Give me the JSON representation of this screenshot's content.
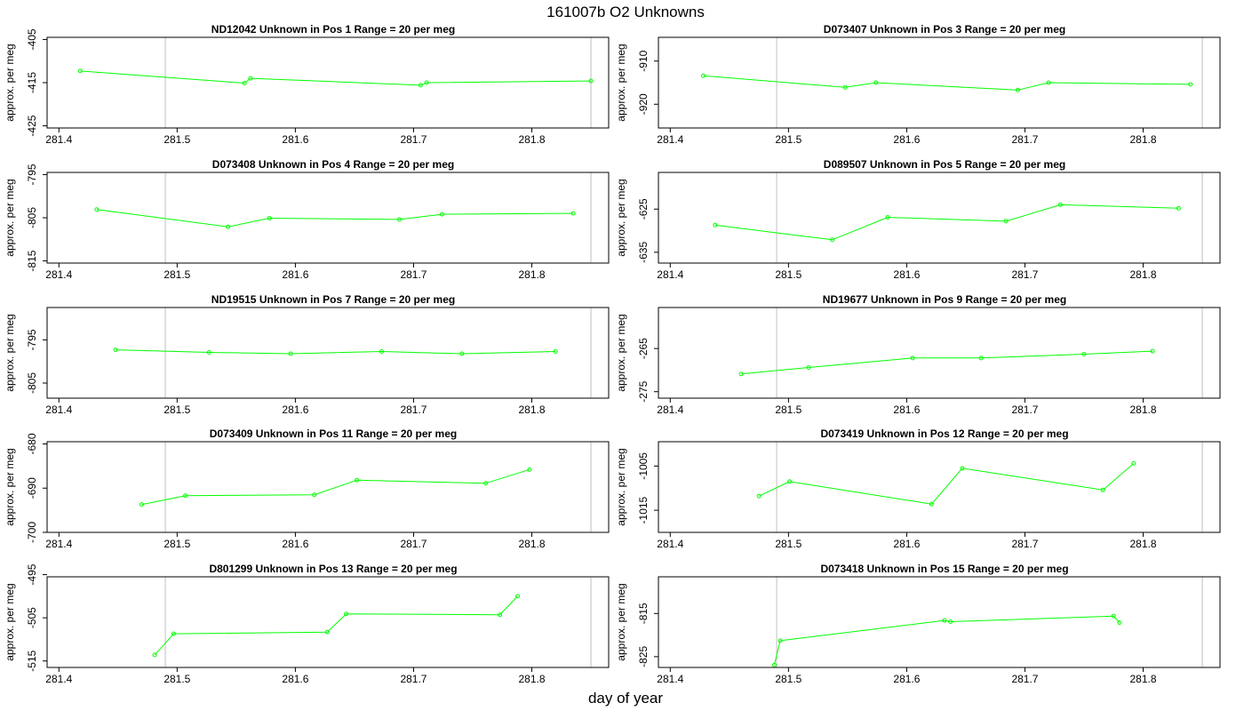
{
  "figure": {
    "title": "161007b  O2 Unknowns",
    "xlabel": "day of year"
  },
  "colors": {
    "line": "#00ff00",
    "frame": "#000000",
    "vline": "#bebebe"
  },
  "chart_data": [
    {
      "type": "line",
      "title": "ND12042    Unknown in Pos 1          Range = 20 per meg",
      "xlabel": "",
      "ylabel": "approx. per meg",
      "xlim": [
        281.39,
        281.865
      ],
      "ylim": [
        -425.5,
        -404.5
      ],
      "x_ticks": [
        281.4,
        281.5,
        281.6,
        281.7,
        281.8
      ],
      "x_tick_labels": [
        "281.4",
        "281.5",
        "281.6",
        "281.7",
        "281.8"
      ],
      "y_ticks": [
        -405,
        -415,
        -425
      ],
      "y_tick_labels": [
        "-405",
        "-415",
        "-425"
      ],
      "vlines": [
        281.49,
        281.85
      ],
      "x": [
        281.418,
        281.557,
        281.562,
        281.706,
        281.711,
        281.85
      ],
      "values": [
        -412.3,
        -415.1,
        -414.0,
        -415.6,
        -415.0,
        -414.6
      ]
    },
    {
      "type": "line",
      "title": "D073407    Unknown in Pos 3          Range = 20 per meg",
      "xlabel": "",
      "ylabel": "approx. per meg",
      "xlim": [
        281.39,
        281.865
      ],
      "ylim": [
        -925.5,
        -904.5
      ],
      "x_ticks": [
        281.4,
        281.5,
        281.6,
        281.7,
        281.8
      ],
      "x_tick_labels": [
        "281.4",
        "281.5",
        "281.6",
        "281.7",
        "281.8"
      ],
      "y_ticks": [
        -910,
        -920
      ],
      "y_tick_labels": [
        "-910",
        "-920"
      ],
      "vlines": [
        281.49,
        281.85
      ],
      "x": [
        281.428,
        281.548,
        281.574,
        281.694,
        281.72,
        281.84
      ],
      "values": [
        -913.4,
        -916.1,
        -915.0,
        -916.7,
        -915.0,
        -915.4
      ]
    },
    {
      "type": "line",
      "title": "D073408    Unknown in Pos 4          Range = 20 per meg",
      "xlabel": "",
      "ylabel": "approx. per meg",
      "xlim": [
        281.39,
        281.865
      ],
      "ylim": [
        -815.5,
        -794.5
      ],
      "x_ticks": [
        281.4,
        281.5,
        281.6,
        281.7,
        281.8
      ],
      "x_tick_labels": [
        "281.4",
        "281.5",
        "281.6",
        "281.7",
        "281.8"
      ],
      "y_ticks": [
        -795,
        -805,
        -815
      ],
      "y_tick_labels": [
        "-795",
        "-805",
        "-815"
      ],
      "vlines": [
        281.49,
        281.85
      ],
      "x": [
        281.432,
        281.543,
        281.578,
        281.688,
        281.724,
        281.835
      ],
      "values": [
        -803.1,
        -807.1,
        -805.1,
        -805.4,
        -804.2,
        -804.0
      ]
    },
    {
      "type": "line",
      "title": "D089507    Unknown in Pos 5          Range = 20 per meg",
      "xlabel": "",
      "ylabel": "approx. per meg",
      "xlim": [
        281.39,
        281.865
      ],
      "ylim": [
        -637.5,
        -616.5
      ],
      "x_ticks": [
        281.4,
        281.5,
        281.6,
        281.7,
        281.8
      ],
      "x_tick_labels": [
        "281.4",
        "281.5",
        "281.6",
        "281.7",
        "281.8"
      ],
      "y_ticks": [
        -625,
        -635
      ],
      "y_tick_labels": [
        "-625",
        "-635"
      ],
      "vlines": [
        281.49,
        281.85
      ],
      "x": [
        281.438,
        281.537,
        281.584,
        281.684,
        281.73,
        281.83
      ],
      "values": [
        -628.7,
        -632.1,
        -626.9,
        -627.8,
        -624.0,
        -624.8
      ]
    },
    {
      "type": "line",
      "title": "ND19515    Unknown in Pos 7          Range = 20 per meg",
      "xlabel": "",
      "ylabel": "approx. per meg",
      "xlim": [
        281.39,
        281.865
      ],
      "ylim": [
        -808.5,
        -787.5
      ],
      "x_ticks": [
        281.4,
        281.5,
        281.6,
        281.7,
        281.8
      ],
      "x_tick_labels": [
        "281.4",
        "281.5",
        "281.6",
        "281.7",
        "281.8"
      ],
      "y_ticks": [
        -795,
        -805
      ],
      "y_tick_labels": [
        "-795",
        "-805"
      ],
      "vlines": [
        281.49,
        281.85
      ],
      "x": [
        281.448,
        281.527,
        281.596,
        281.673,
        281.741,
        281.82
      ],
      "values": [
        -797.3,
        -797.9,
        -798.2,
        -797.7,
        -798.2,
        -797.7
      ]
    },
    {
      "type": "line",
      "title": "ND19677    Unknown in Pos 9          Range = 20 per meg",
      "xlabel": "",
      "ylabel": "approx. per meg",
      "xlim": [
        281.39,
        281.865
      ],
      "ylim": [
        -276.5,
        -255.5
      ],
      "x_ticks": [
        281.4,
        281.5,
        281.6,
        281.7,
        281.8
      ],
      "x_tick_labels": [
        "281.4",
        "281.5",
        "281.6",
        "281.7",
        "281.8"
      ],
      "y_ticks": [
        -265,
        -275
      ],
      "y_tick_labels": [
        "-265",
        "-275"
      ],
      "vlines": [
        281.49,
        281.85
      ],
      "x": [
        281.46,
        281.517,
        281.605,
        281.663,
        281.75,
        281.808
      ],
      "values": [
        -270.9,
        -269.4,
        -267.2,
        -267.2,
        -266.3,
        -265.6
      ]
    },
    {
      "type": "line",
      "title": "D073409    Unknown in Pos 11          Range = 20 per meg",
      "xlabel": "",
      "ylabel": "approx. per meg",
      "xlim": [
        281.39,
        281.865
      ],
      "ylim": [
        -700,
        -679.5
      ],
      "x_ticks": [
        281.4,
        281.5,
        281.6,
        281.7,
        281.8
      ],
      "x_tick_labels": [
        "281.4",
        "281.5",
        "281.6",
        "281.7",
        "281.8"
      ],
      "y_ticks": [
        -680,
        -690,
        -700
      ],
      "y_tick_labels": [
        "-680",
        "-690",
        "-700"
      ],
      "vlines": [
        281.49,
        281.85
      ],
      "x": [
        281.47,
        281.507,
        281.616,
        281.652,
        281.761,
        281.798
      ],
      "values": [
        -693.7,
        -691.7,
        -691.5,
        -688.2,
        -688.9,
        -685.8
      ]
    },
    {
      "type": "line",
      "title": "D073419    Unknown in Pos 12          Range = 20 per meg",
      "xlabel": "",
      "ylabel": "approx. per meg",
      "xlim": [
        281.39,
        281.865
      ],
      "ylim": [
        -1020,
        -999.5
      ],
      "x_ticks": [
        281.4,
        281.5,
        281.6,
        281.7,
        281.8
      ],
      "x_tick_labels": [
        "281.4",
        "281.5",
        "281.6",
        "281.7",
        "281.8"
      ],
      "y_ticks": [
        -1005,
        -1015
      ],
      "y_tick_labels": [
        "-1005",
        "-1015"
      ],
      "vlines": [
        281.49,
        281.85
      ],
      "x": [
        281.475,
        281.501,
        281.621,
        281.647,
        281.766,
        281.792
      ],
      "values": [
        -1011.8,
        -1008.5,
        -1013.6,
        -1005.5,
        -1010.4,
        -1004.4
      ]
    },
    {
      "type": "line",
      "title": "D801299    Unknown in Pos 13          Range = 20 per meg",
      "xlabel": "",
      "ylabel": "approx. per meg",
      "xlim": [
        281.39,
        281.865
      ],
      "ylim": [
        -516.5,
        -495.5
      ],
      "x_ticks": [
        281.4,
        281.5,
        281.6,
        281.7,
        281.8
      ],
      "x_tick_labels": [
        "281.4",
        "281.5",
        "281.6",
        "281.7",
        "281.8"
      ],
      "y_ticks": [
        -495,
        -505,
        -515
      ],
      "y_tick_labels": [
        "-495",
        "-505",
        "-515"
      ],
      "vlines": [
        281.49,
        281.85
      ],
      "x": [
        281.481,
        281.497,
        281.627,
        281.643,
        281.773,
        281.788
      ],
      "values": [
        -513.6,
        -508.7,
        -508.3,
        -504.1,
        -504.3,
        -500.0
      ]
    },
    {
      "type": "line",
      "title": "D073418    Unknown in Pos 15          Range = 20 per meg",
      "xlabel": "",
      "ylabel": "approx. per meg",
      "xlim": [
        281.39,
        281.865
      ],
      "ylim": [
        -827.5,
        -806.5
      ],
      "x_ticks": [
        281.4,
        281.5,
        281.6,
        281.7,
        281.8
      ],
      "x_tick_labels": [
        "281.4",
        "281.5",
        "281.6",
        "281.7",
        "281.8"
      ],
      "y_ticks": [
        -815,
        -825
      ],
      "y_tick_labels": [
        "-815",
        "-825"
      ],
      "vlines": [
        281.49,
        281.85
      ],
      "x": [
        281.488,
        281.493,
        281.632,
        281.637,
        281.775,
        281.78
      ],
      "values": [
        -826.9,
        -821.3,
        -816.6,
        -816.9,
        -815.6,
        -817.1
      ]
    }
  ]
}
